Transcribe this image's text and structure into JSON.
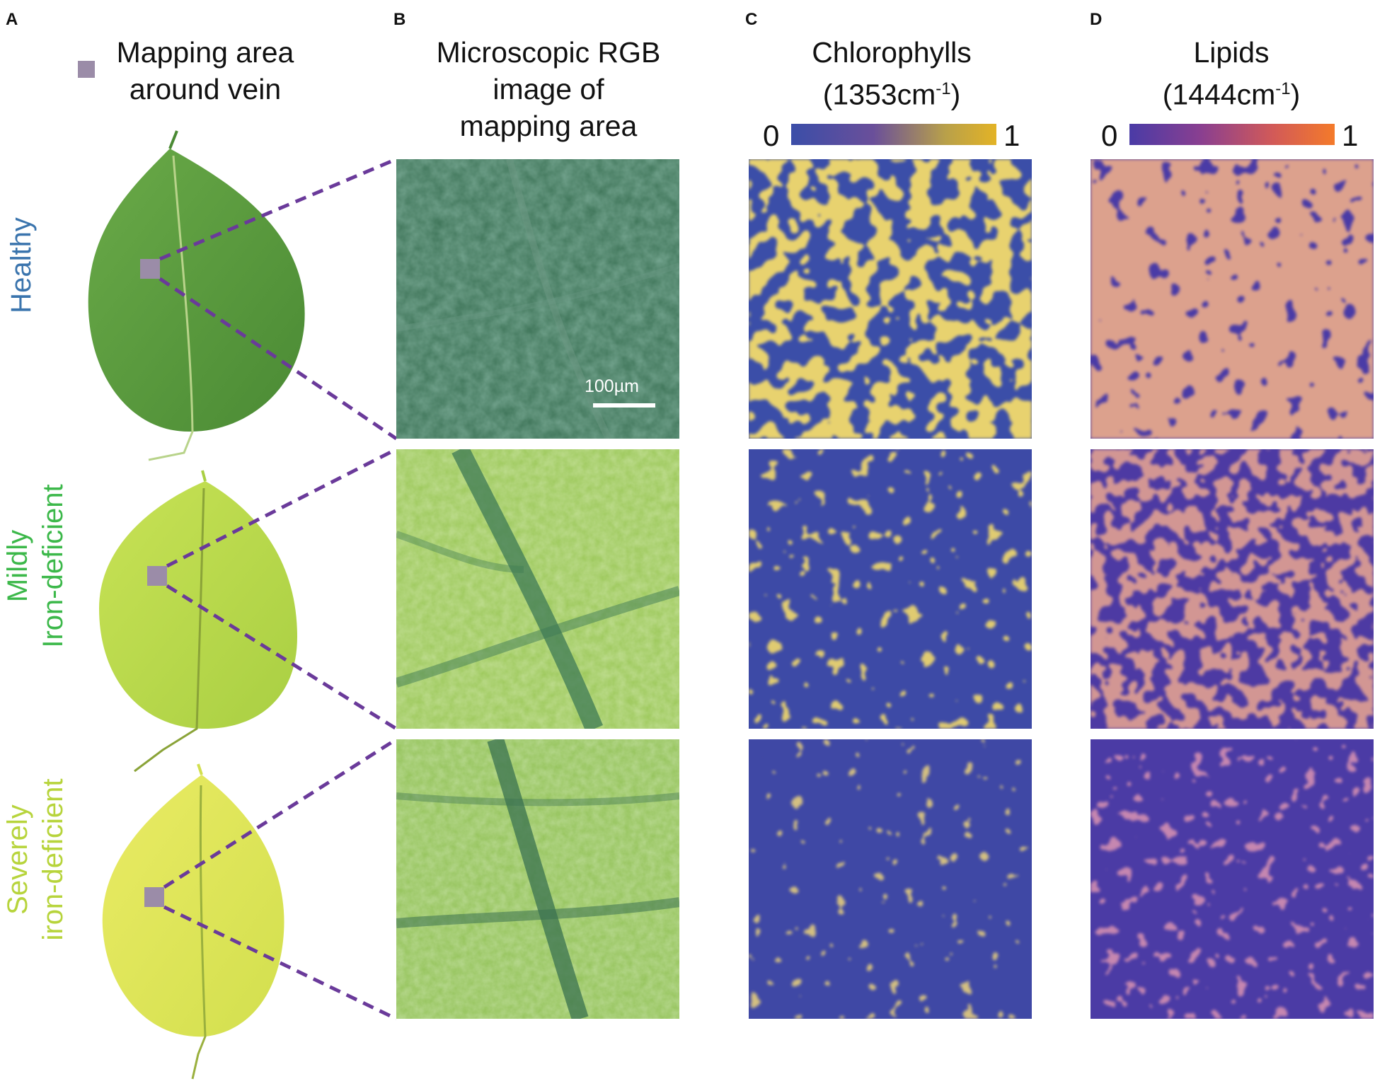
{
  "panels": {
    "a": {
      "letter": "A",
      "legend_line1": "Mapping area",
      "legend_line2": "around vein",
      "legend_swatch_color": "#9b8ca8"
    },
    "b": {
      "letter": "B",
      "title_line1": "Microscopic RGB",
      "title_line2": "image of",
      "title_line3": "mapping area",
      "scale_bar": "100µm"
    },
    "c": {
      "letter": "C",
      "title": "Chlorophylls",
      "wavenumber": "(1353cm",
      "wavenumber_sup": "-1",
      "wavenumber_close": ")",
      "cbar_min": "0",
      "cbar_max": "1",
      "cbar_colors": [
        "#3b4ea8",
        "#6a4f9a",
        "#e3b326"
      ]
    },
    "d": {
      "letter": "D",
      "title": "Lipids",
      "wavenumber": "(1444cm",
      "wavenumber_sup": "-1",
      "wavenumber_close": ")",
      "cbar_min": "0",
      "cbar_max": "1",
      "cbar_colors": [
        "#4a3ba6",
        "#b5487a",
        "#f47a2a"
      ]
    }
  },
  "rows": [
    {
      "label_line1": "Healthy",
      "label_line2": "",
      "label_color": "#3a74ad",
      "leaf_color": "#5a9a3c",
      "micro_color": "#3e7458",
      "chl_level": 0.62,
      "lip_level": 0.66
    },
    {
      "label_line1": "Mildly",
      "label_line2": "Iron-deficient",
      "label_color": "#3cb84a",
      "leaf_color": "#b9d94a",
      "micro_color": "#8fc34e",
      "chl_level": 0.42,
      "lip_level": 0.55
    },
    {
      "label_line1": "Severely",
      "label_line2": "iron-deficient",
      "label_color": "#b7d43c",
      "leaf_color": "#dfe65a",
      "micro_color": "#89bb4f",
      "chl_level": 0.3,
      "lip_level": 0.35
    }
  ]
}
